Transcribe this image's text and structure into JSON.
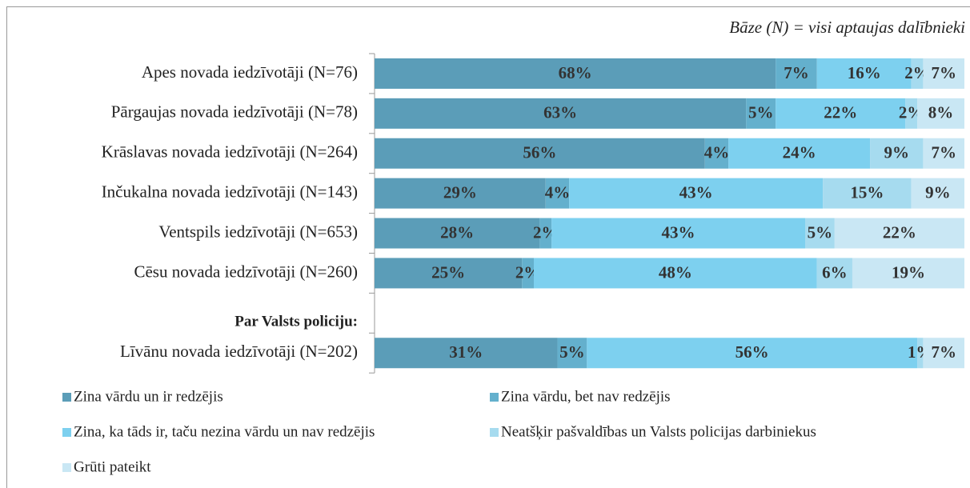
{
  "chart_data": {
    "type": "stacked-bar-horizontal",
    "subtitle": "Bāze (N) = visi aptaujas dalībnieki",
    "categories": [
      "Apes novada iedzīvotāji (N=76)",
      "Pārgaujas novada iedzīvotāji (N=78)",
      "Krāslavas novada iedzīvotāji (N=264)",
      "Inčukalna novada iedzīvotāji (N=143)",
      "Ventspils iedzīvotāji (N=653)",
      "Cēsu  novada iedzīvotāji (N=260)",
      "Par Valsts policiju:",
      "Līvānu novada iedzīvotāji (N=202)"
    ],
    "xlim": [
      0,
      100
    ],
    "series": [
      {
        "name": "Zina vārdu un ir redzējis",
        "color": "#5b9db8",
        "values": [
          68,
          63,
          56,
          29,
          28,
          25,
          null,
          31
        ],
        "value_labels": [
          "68%",
          "63%",
          "56%",
          "29%",
          "28%",
          "25%",
          null,
          "31%"
        ]
      },
      {
        "name": "Zina vārdu, bet nav redzējis",
        "color": "#64b0cd",
        "values": [
          7,
          5,
          4,
          4,
          2,
          2,
          null,
          5
        ],
        "value_labels": [
          "7%",
          "5%",
          "4%",
          "4%",
          "2%",
          "2%",
          null,
          "5%"
        ]
      },
      {
        "name": "Zina, ka tāds ir, taču nezina vārdu un nav redzējis",
        "color": "#7dd0ef",
        "values": [
          16,
          22,
          24,
          43,
          43,
          48,
          null,
          56
        ],
        "value_labels": [
          "16%",
          "22%",
          "24%",
          "43%",
          "43%",
          "48%",
          null,
          "56%"
        ]
      },
      {
        "name": "Neatšķir pašvaldības un Valsts policijas darbiniekus",
        "color": "#a6dbef",
        "values": [
          2,
          2,
          9,
          15,
          5,
          6,
          null,
          1
        ],
        "value_labels": [
          "2%",
          "2%",
          "9%",
          "15%",
          "5%",
          "6%",
          null,
          "1%"
        ]
      },
      {
        "name": "Grūti pateikt",
        "color": "#c9e7f4",
        "values": [
          7,
          8,
          7,
          9,
          22,
          19,
          null,
          7
        ],
        "value_labels": [
          "7%",
          "8%",
          "7%",
          "9%",
          "22%",
          "19%",
          null,
          "7%"
        ]
      }
    ]
  }
}
